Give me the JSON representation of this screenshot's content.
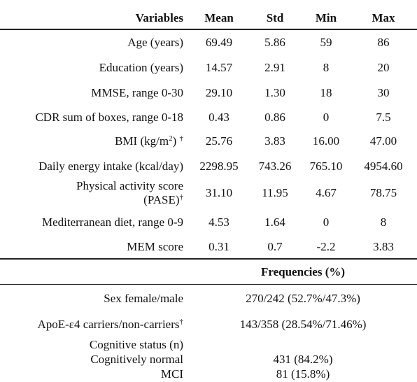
{
  "table": {
    "header": [
      "Variables",
      "Mean",
      "Std",
      "Min",
      "Max"
    ],
    "rows": [
      {
        "label": [
          [
            {
              "text": "Age (years)"
            }
          ]
        ],
        "values": [
          "69.49",
          "5.86",
          "59",
          "86"
        ]
      },
      {
        "label": [
          [
            {
              "text": "Education (years)"
            }
          ]
        ],
        "values": [
          "14.57",
          "2.91",
          "8",
          "20"
        ]
      },
      {
        "label": [
          [
            {
              "text": "MMSE, range 0-30"
            }
          ]
        ],
        "values": [
          "29.10",
          "1.30",
          "18",
          "30"
        ]
      },
      {
        "label": [
          [
            {
              "text": "CDR sum of boxes, range 0-18"
            }
          ]
        ],
        "values": [
          "0.43",
          "0.86",
          "0",
          "7.5"
        ]
      },
      {
        "label": [
          [
            {
              "text": "BMI (kg/m"
            },
            {
              "sup": "2"
            },
            {
              "text": ") "
            },
            {
              "sup": "†"
            }
          ]
        ],
        "values": [
          "25.76",
          "3.83",
          "16.00",
          "47.00"
        ]
      },
      {
        "label": [
          [
            {
              "text": "Daily energy intake (kcal/day)"
            }
          ]
        ],
        "values": [
          "2298.95",
          "743.26",
          "765.10",
          "4954.60"
        ]
      },
      {
        "label": [
          [
            {
              "text": "Physical activity score"
            }
          ],
          [
            {
              "text": "(PASE)"
            },
            {
              "sup": "†"
            }
          ]
        ],
        "values": [
          "31.10",
          "11.95",
          "4.67",
          "78.75"
        ]
      },
      {
        "label": [
          [
            {
              "text": "Mediterranean diet, range 0-9"
            }
          ]
        ],
        "values": [
          "4.53",
          "1.64",
          "0",
          "8"
        ]
      },
      {
        "label": [
          [
            {
              "text": "MEM score"
            }
          ]
        ],
        "values": [
          "0.31",
          "0.7",
          "-2.2",
          "3.83"
        ]
      }
    ],
    "section_title": "Frequencies (%)",
    "frequency_rows": [
      {
        "label": [
          [
            {
              "text": "Sex female/male"
            }
          ]
        ],
        "value": "270/242 (52.7%/47.3%)"
      },
      {
        "label": [
          [
            {
              "text": "ApoE-ε4 carriers/non-carriers"
            },
            {
              "sup": "†"
            }
          ]
        ],
        "value": "143/358 (28.54%/71.46%)"
      },
      {
        "label": [
          [
            {
              "text": "Cognitive status (n)"
            }
          ]
        ]
      },
      {
        "label": [
          [
            {
              "text": "Cognitively normal"
            }
          ]
        ],
        "value": "431 (84.2%)"
      },
      {
        "label": [
          [
            {
              "text": "MCI"
            }
          ]
        ],
        "value": "81 (15.8%)"
      }
    ]
  }
}
